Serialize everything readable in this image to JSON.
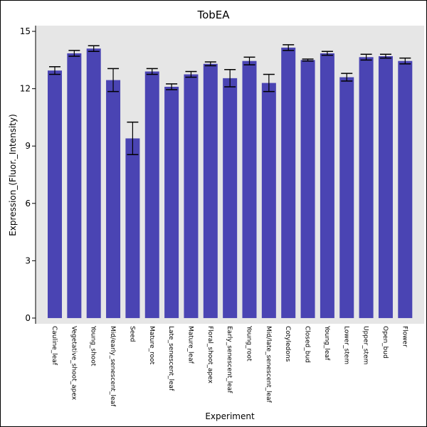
{
  "chart_data": {
    "type": "bar",
    "title": "TobEA",
    "xlabel": "Experiment",
    "ylabel": "Expression_(Fluor._Intensity)",
    "ylim": [
      -0.3,
      15.3
    ],
    "yticks": [
      0,
      3,
      6,
      9,
      12,
      15
    ],
    "grid": false,
    "colors": {
      "bar": "#4a44b3",
      "plot_bg": "#e6e6e6",
      "error": "#000000"
    },
    "categories": [
      "Cauline_leaf",
      "Vegetative_shoot_apex",
      "Young_shoot",
      "Mid/early_senescent_leaf",
      "Seed",
      "Mature_root",
      "Late_senescent_leaf",
      "Mature_leaf",
      "Floral_shoot_apex",
      "Early_senescent_leaf",
      "Young_root",
      "Mid/late_senescent_leaf",
      "Cotyledons",
      "Closed_bud",
      "Young_leaf",
      "Lower_stem",
      "Upper_stem",
      "Open_bud",
      "Flower"
    ],
    "values": [
      12.95,
      13.85,
      14.1,
      12.45,
      9.4,
      12.9,
      12.1,
      12.75,
      13.3,
      12.55,
      13.45,
      12.3,
      14.15,
      13.5,
      13.85,
      12.6,
      13.65,
      13.7,
      13.45
    ],
    "errors": [
      0.2,
      0.15,
      0.15,
      0.6,
      0.85,
      0.15,
      0.15,
      0.15,
      0.1,
      0.45,
      0.2,
      0.45,
      0.15,
      0.05,
      0.1,
      0.2,
      0.15,
      0.1,
      0.15
    ]
  }
}
